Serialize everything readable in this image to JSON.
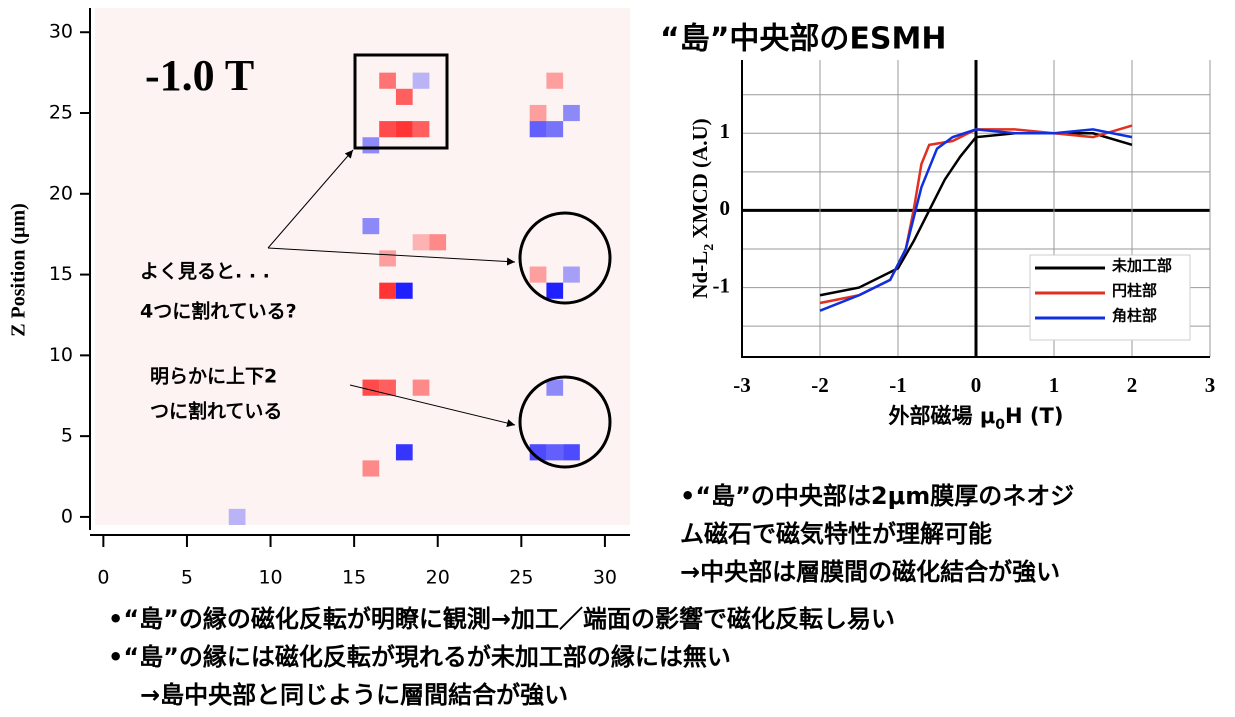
{
  "chart_data": [
    {
      "type": "heatmap",
      "ylabel": "Z Position (μm)",
      "xlim": [
        -0.5,
        31.5
      ],
      "ylim": [
        -0.5,
        31.5
      ],
      "xticks": [
        0,
        5,
        10,
        15,
        20,
        25,
        30
      ],
      "yticks": [
        0,
        5,
        10,
        15,
        20,
        25,
        30
      ],
      "pos_color": "#ff2020",
      "neg_color": "#2020ff",
      "background": "#fdf3f3",
      "cells": [
        [
          17,
          27,
          0.6
        ],
        [
          18,
          26,
          0.7
        ],
        [
          17,
          24,
          0.8
        ],
        [
          18,
          24,
          0.9
        ],
        [
          19,
          24,
          0.7
        ],
        [
          16,
          23,
          -0.5
        ],
        [
          19,
          27,
          -0.3
        ],
        [
          26,
          24,
          -0.7
        ],
        [
          27,
          24,
          -0.6
        ],
        [
          28,
          25,
          -0.5
        ],
        [
          27,
          27,
          0.4
        ],
        [
          26,
          25,
          0.4
        ],
        [
          16,
          18,
          -0.5
        ],
        [
          19,
          17,
          0.3
        ],
        [
          20,
          17,
          0.5
        ],
        [
          17,
          16,
          0.4
        ],
        [
          17,
          14,
          0.9
        ],
        [
          18,
          14,
          -1.0
        ],
        [
          26,
          15,
          0.4
        ],
        [
          27,
          14,
          -1.0
        ],
        [
          28,
          15,
          -0.4
        ],
        [
          16,
          8,
          0.8
        ],
        [
          17,
          8,
          0.7
        ],
        [
          19,
          8,
          0.5
        ],
        [
          27,
          8,
          -0.5
        ],
        [
          18,
          4,
          -0.9
        ],
        [
          16,
          3,
          0.5
        ],
        [
          26,
          4,
          -0.8
        ],
        [
          27,
          4,
          -0.7
        ],
        [
          28,
          4,
          -0.8
        ],
        [
          8,
          0,
          -0.3
        ]
      ],
      "annotations": [
        "-1.0 T",
        "よく見ると. . .",
        "4つに割れている?",
        "明らかに上下2",
        "つに割れている"
      ]
    },
    {
      "type": "line",
      "title": "“島”中央部のESMH",
      "xlabel": [
        "外部磁場 μ",
        "0",
        "H (T)"
      ],
      "ylabel": [
        "Nd-L",
        "2",
        " XMCD (A.U)"
      ],
      "xlim": [
        -3,
        3
      ],
      "ylim": [
        -1.9,
        1.95
      ],
      "xticks": [
        -3,
        -2,
        -1,
        0,
        1,
        2,
        3
      ],
      "yticks": [
        -1,
        0,
        1
      ],
      "minor_yticks": [
        -1.5,
        -0.5,
        0.5,
        1.5
      ],
      "grid": true,
      "series": [
        {
          "name": "未加工部",
          "color": "#000000",
          "x": [
            -2,
            -1.5,
            -1,
            -0.8,
            -0.6,
            -0.4,
            -0.2,
            0,
            0.5,
            1,
            1.5,
            2
          ],
          "values": [
            -1.1,
            -1,
            -0.75,
            -0.4,
            0,
            0.4,
            0.7,
            0.95,
            1,
            1,
            1,
            0.85
          ]
        },
        {
          "name": "円柱部",
          "color": "#e03020",
          "x": [
            -2,
            -1.5,
            -1.1,
            -0.9,
            -0.8,
            -0.7,
            -0.6,
            -0.3,
            0,
            0.5,
            1,
            1.5,
            2
          ],
          "values": [
            -1.2,
            -1.1,
            -0.9,
            -0.5,
            0,
            0.6,
            0.85,
            0.9,
            1.05,
            1.05,
            1,
            0.95,
            1.1
          ]
        },
        {
          "name": "角柱部",
          "color": "#1030e0",
          "x": [
            -2,
            -1.5,
            -1.1,
            -0.9,
            -0.7,
            -0.5,
            -0.3,
            0,
            0.5,
            1,
            1.5,
            2
          ],
          "values": [
            -1.3,
            -1.1,
            -0.9,
            -0.5,
            0.3,
            0.8,
            0.95,
            1.05,
            1,
            1,
            1.05,
            0.95
          ]
        }
      ]
    }
  ],
  "notes": {
    "right": [
      "•“島”の中央部は2μm膜厚のネオジ",
      "ム磁石で磁気特性が理解可能",
      "→中央部は層膜間の磁化結合が強い"
    ],
    "bottom": [
      "•“島”の縁の磁化反転が明瞭に観測→加工／端面の影響で磁化反転し易い",
      "•“島”の縁には磁化反転が現れるが未加工部の縁には無い",
      "→島中央部と同じように層間結合が強い"
    ]
  }
}
